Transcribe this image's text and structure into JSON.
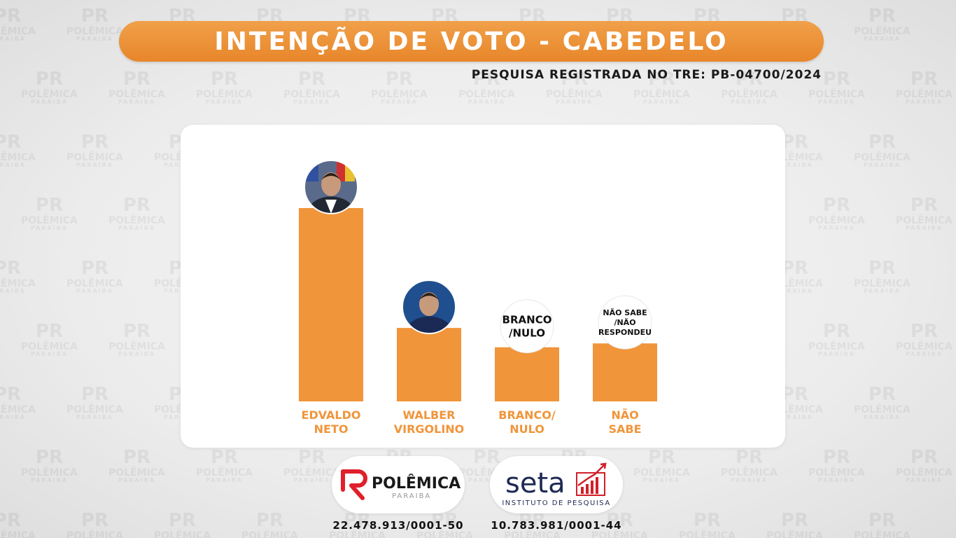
{
  "header": {
    "title": "INTENÇÃO DE VOTO - CABEDELO",
    "registration": "PESQUISA REGISTRADA NO TRE: PB-04700/2024"
  },
  "colors": {
    "accent": "#f0953a",
    "title_bg": "#e8862a",
    "seta_red": "#d0202a",
    "seta_navy": "#1e2a55",
    "polemica_red": "#e0202a"
  },
  "watermark": {
    "logo": "PR",
    "text": "POLÊMICA",
    "sub": "PARAIBA"
  },
  "chart_data": {
    "type": "bar",
    "categories": [
      "EDVALDO NETO",
      "WALBER VIRGOLINO",
      "BRANCO/ NULO",
      "NÃO SABE"
    ],
    "category_lines": [
      [
        "EDVALDO",
        "NETO"
      ],
      [
        "WALBER",
        "VIRGOLINO"
      ],
      [
        "BRANCO/",
        "NULO"
      ],
      [
        "NÃO",
        "SABE"
      ]
    ],
    "values": [
      100,
      38,
      28,
      30
    ],
    "value_unit": "relative bar height (no values printed)",
    "ylim": [
      0,
      100
    ],
    "grid": false,
    "markers": [
      {
        "kind": "photo",
        "icon": "candidate-photo-icon"
      },
      {
        "kind": "photo",
        "icon": "candidate-photo-icon"
      },
      {
        "kind": "text",
        "lines": [
          "BRANCO",
          "/NULO"
        ]
      },
      {
        "kind": "text",
        "lines": [
          "NÃO SABE",
          "/NÃO",
          "RESPONDEU"
        ]
      }
    ]
  },
  "footer": {
    "polemica": {
      "name": "POLÊMICA",
      "sub": "PARAIBA",
      "cnpj": "22.478.913/0001-50"
    },
    "seta": {
      "name": "seta",
      "sub": "INSTITUTO DE PESQUISA",
      "cnpj": "10.783.981/0001-44"
    }
  }
}
